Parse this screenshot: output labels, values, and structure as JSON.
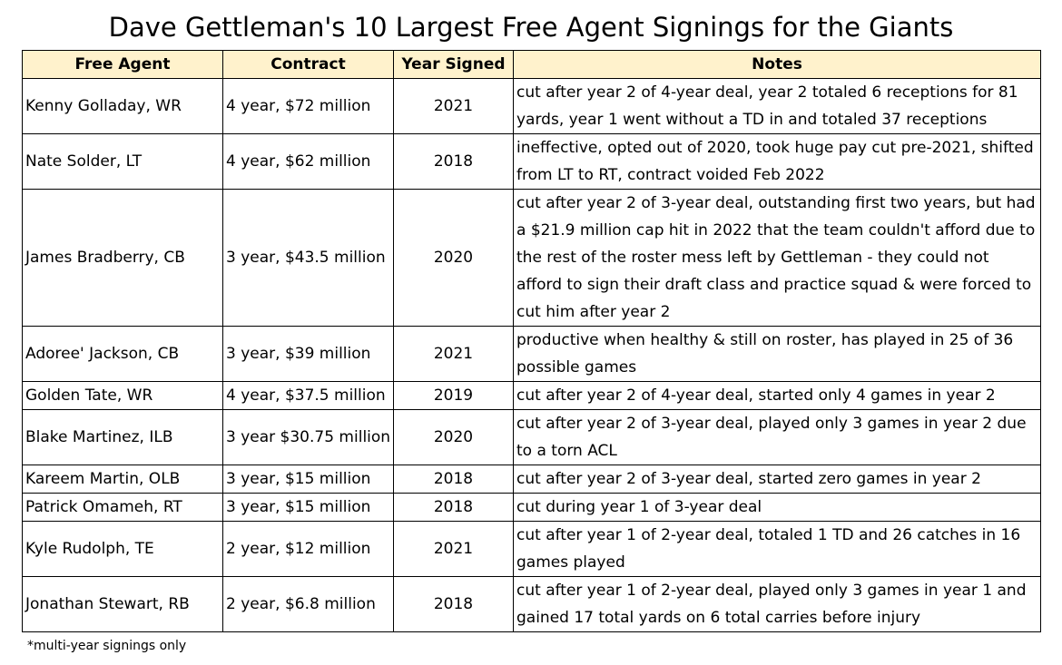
{
  "title": "Dave Gettleman's 10 Largest Free Agent Signings for the Giants",
  "columns": [
    "Free Agent",
    "Contract",
    "Year Signed",
    "Notes"
  ],
  "rows": [
    {
      "name": "Kenny Golladay, WR",
      "contract": "4 year, $72 million",
      "year": "2021",
      "notes": "cut after year 2 of 4-year deal, year 2 totaled 6 receptions for 81 yards, year 1 went without a TD in and totaled 37 receptions"
    },
    {
      "name": "Nate Solder, LT",
      "contract": "4 year, $62 million",
      "year": "2018",
      "notes": "ineffective, opted out of 2020, took huge pay cut pre-2021, shifted from LT to RT, contract voided Feb 2022"
    },
    {
      "name": "James Bradberry, CB",
      "contract": "3 year, $43.5 million",
      "year": "2020",
      "notes": "cut after year 2 of 3-year deal, outstanding first two years, but had a $21.9 million cap hit in 2022 that the team couldn't afford due to the rest of the roster mess left by Gettleman - they could not afford to sign their draft class and practice squad & were forced to cut him after year 2"
    },
    {
      "name": "Adoree' Jackson, CB",
      "contract": "3 year, $39 million",
      "year": "2021",
      "notes": "productive when healthy & still on roster, has played in 25 of 36 possible games"
    },
    {
      "name": "Golden Tate, WR",
      "contract": "4 year, $37.5 million",
      "year": "2019",
      "notes": "cut after year 2 of 4-year deal, started only 4 games in year 2"
    },
    {
      "name": "Blake Martinez, ILB",
      "contract": "3 year $30.75 million",
      "year": "2020",
      "notes": "cut after year 2 of 3-year deal, played only 3 games in year 2 due to a torn ACL"
    },
    {
      "name": "Kareem Martin, OLB",
      "contract": "3 year, $15 million",
      "year": "2018",
      "notes": "cut after year 2 of 3-year deal, started zero games in year 2"
    },
    {
      "name": "Patrick Omameh, RT",
      "contract": "3 year, $15 million",
      "year": "2018",
      "notes": "cut during year 1 of 3-year deal"
    },
    {
      "name": "Kyle Rudolph, TE",
      "contract": "2 year, $12 million",
      "year": "2021",
      "notes": "cut after year 1 of 2-year deal, totaled 1 TD and 26 catches in 16 games played"
    },
    {
      "name": "Jonathan Stewart, RB",
      "contract": "2 year, $6.8 million",
      "year": "2018",
      "notes": "cut after year 1 of 2-year deal, played only 3 games in year 1 and gained 17 total yards on 6 total carries before injury"
    }
  ],
  "footnote": "*multi-year signings only",
  "colors": {
    "header_bg": "#fff2cc",
    "border": "#000000"
  }
}
